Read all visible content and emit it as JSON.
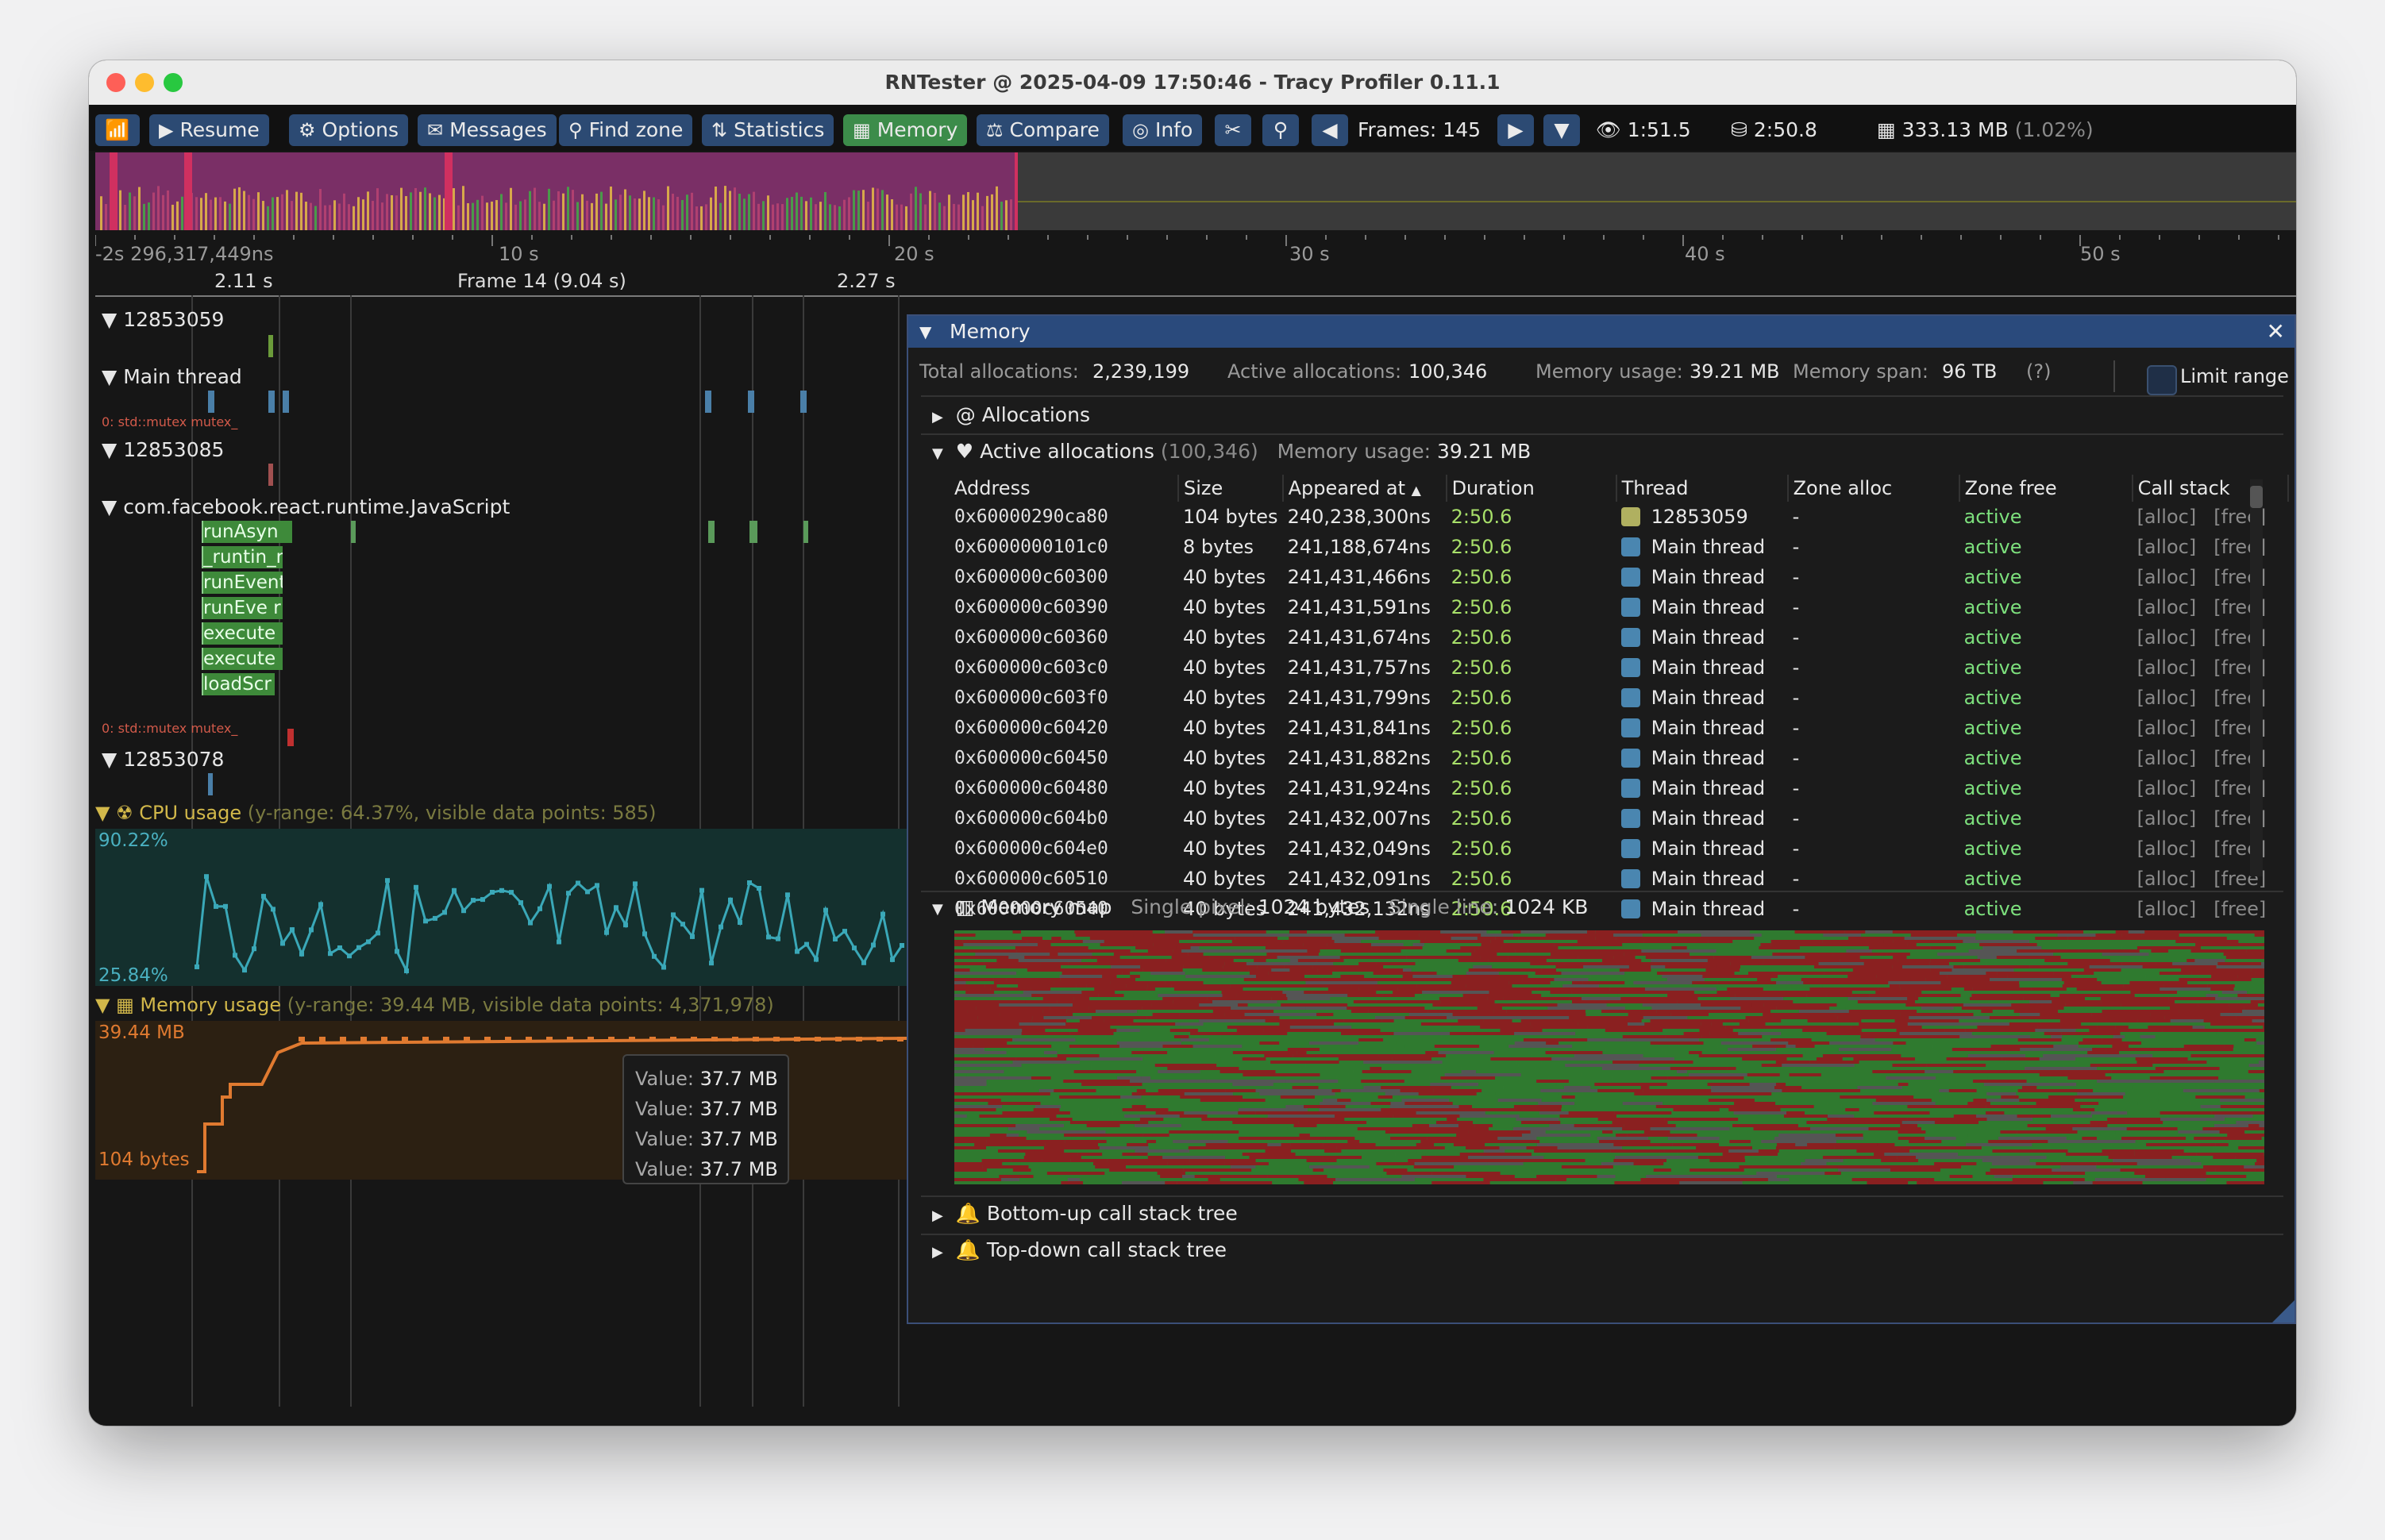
{
  "window": {
    "title": "RNTester @ 2025-04-09 17:50:46 - Tracy Profiler 0.11.1"
  },
  "toolbar": {
    "wifi_icon": "wifi-icon",
    "resume": "Resume",
    "options": "Options",
    "messages": "Messages",
    "find_zone": "Find zone",
    "statistics": "Statistics",
    "memory": "Memory",
    "compare": "Compare",
    "info": "Info",
    "frames": "Frames: 145",
    "view_time": "1:51.5",
    "total_time": "2:50.8",
    "memory_usage": "333.13 MB",
    "memory_pct": "(1.02%)"
  },
  "timeline": {
    "ticks": [
      "-2s 296,317,449ns",
      "10 s",
      "20 s",
      "30 s",
      "40 s",
      "50 s"
    ],
    "frames": [
      "2.11 s",
      "Frame 14 (9.04 s)",
      "2.27 s"
    ],
    "threads": [
      "12853059",
      "Main thread",
      "12853085",
      "com.facebook.react.runtime.JavaScript",
      "12853078"
    ],
    "mutex_label": "0: std::mutex mutex_",
    "zones": [
      "runAsyn",
      "_runtin_r",
      "runEvent",
      "runEve r",
      "execute",
      "execute",
      "loadScr"
    ]
  },
  "cpu_plot": {
    "header": "CPU usage",
    "info": "(y-range: 64.37%, visible data points: 585)",
    "max": "90.22%",
    "min": "25.84%"
  },
  "mem_plot": {
    "header": "Memory usage",
    "info": "(y-range: 39.44 MB, visible data points: 4,371,978)",
    "max": "39.44 MB",
    "min": "104 bytes"
  },
  "tooltip": [
    {
      "k": "Value:",
      "v": "37.7 MB"
    },
    {
      "k": "Value:",
      "v": "37.7 MB"
    },
    {
      "k": "Value:",
      "v": "37.7 MB"
    },
    {
      "k": "Value:",
      "v": "37.7 MB"
    }
  ],
  "memory": {
    "title": "Memory",
    "stats": {
      "total_label": "Total allocations:",
      "total": "2,239,199",
      "active_label": "Active allocations:",
      "active": "100,346",
      "usage_label": "Memory usage:",
      "usage": "39.21 MB",
      "span_label": "Memory span:",
      "span": "96 TB",
      "help": "(?)",
      "limit": "Limit range"
    },
    "allocations": "@ Allocations",
    "active_section": {
      "title": "Active allocations",
      "count": "(100,346)",
      "usage_label": "Memory usage:",
      "usage": "39.21 MB"
    },
    "columns": [
      "Address",
      "Size",
      "Appeared at",
      "Duration",
      "Thread",
      "Zone alloc",
      "Zone free",
      "Call stack"
    ],
    "rows": [
      {
        "addr": "0x60000290ca80",
        "size": "104 bytes",
        "at": "240,238,300ns",
        "dur": "2:50.6",
        "thread": "12853059",
        "color": "#b0b060",
        "za": "-",
        "zf": "active"
      },
      {
        "addr": "0x6000000101c0",
        "size": "8 bytes",
        "at": "241,188,674ns",
        "dur": "2:50.6",
        "thread": "Main thread",
        "color": "#4a86b0",
        "za": "-",
        "zf": "active"
      },
      {
        "addr": "0x600000c60300",
        "size": "40 bytes",
        "at": "241,431,466ns",
        "dur": "2:50.6",
        "thread": "Main thread",
        "color": "#4a86b0",
        "za": "-",
        "zf": "active"
      },
      {
        "addr": "0x600000c60390",
        "size": "40 bytes",
        "at": "241,431,591ns",
        "dur": "2:50.6",
        "thread": "Main thread",
        "color": "#4a86b0",
        "za": "-",
        "zf": "active"
      },
      {
        "addr": "0x600000c60360",
        "size": "40 bytes",
        "at": "241,431,674ns",
        "dur": "2:50.6",
        "thread": "Main thread",
        "color": "#4a86b0",
        "za": "-",
        "zf": "active"
      },
      {
        "addr": "0x600000c603c0",
        "size": "40 bytes",
        "at": "241,431,757ns",
        "dur": "2:50.6",
        "thread": "Main thread",
        "color": "#4a86b0",
        "za": "-",
        "zf": "active"
      },
      {
        "addr": "0x600000c603f0",
        "size": "40 bytes",
        "at": "241,431,799ns",
        "dur": "2:50.6",
        "thread": "Main thread",
        "color": "#4a86b0",
        "za": "-",
        "zf": "active"
      },
      {
        "addr": "0x600000c60420",
        "size": "40 bytes",
        "at": "241,431,841ns",
        "dur": "2:50.6",
        "thread": "Main thread",
        "color": "#4a86b0",
        "za": "-",
        "zf": "active"
      },
      {
        "addr": "0x600000c60450",
        "size": "40 bytes",
        "at": "241,431,882ns",
        "dur": "2:50.6",
        "thread": "Main thread",
        "color": "#4a86b0",
        "za": "-",
        "zf": "active"
      },
      {
        "addr": "0x600000c60480",
        "size": "40 bytes",
        "at": "241,431,924ns",
        "dur": "2:50.6",
        "thread": "Main thread",
        "color": "#4a86b0",
        "za": "-",
        "zf": "active"
      },
      {
        "addr": "0x600000c604b0",
        "size": "40 bytes",
        "at": "241,432,007ns",
        "dur": "2:50.6",
        "thread": "Main thread",
        "color": "#4a86b0",
        "za": "-",
        "zf": "active"
      },
      {
        "addr": "0x600000c604e0",
        "size": "40 bytes",
        "at": "241,432,049ns",
        "dur": "2:50.6",
        "thread": "Main thread",
        "color": "#4a86b0",
        "za": "-",
        "zf": "active"
      },
      {
        "addr": "0x600000c60510",
        "size": "40 bytes",
        "at": "241,432,091ns",
        "dur": "2:50.6",
        "thread": "Main thread",
        "color": "#4a86b0",
        "za": "-",
        "zf": "active"
      },
      {
        "addr": "0x600000c60540",
        "size": "40 bytes",
        "at": "241,432,132ns",
        "dur": "2:50.6",
        "thread": "Main thread",
        "color": "#4a86b0",
        "za": "-",
        "zf": "active"
      }
    ],
    "callstack_alloc": "[alloc]",
    "callstack_free": "[free]",
    "memory_map": {
      "title": "Memory map",
      "pixel_label": "Single pixel:",
      "pixel": "1024 bytes",
      "line_label": "Single line:",
      "line": "1024 KB"
    },
    "bottom_up": "Bottom-up call stack tree",
    "top_down": "Top-down call stack tree"
  }
}
